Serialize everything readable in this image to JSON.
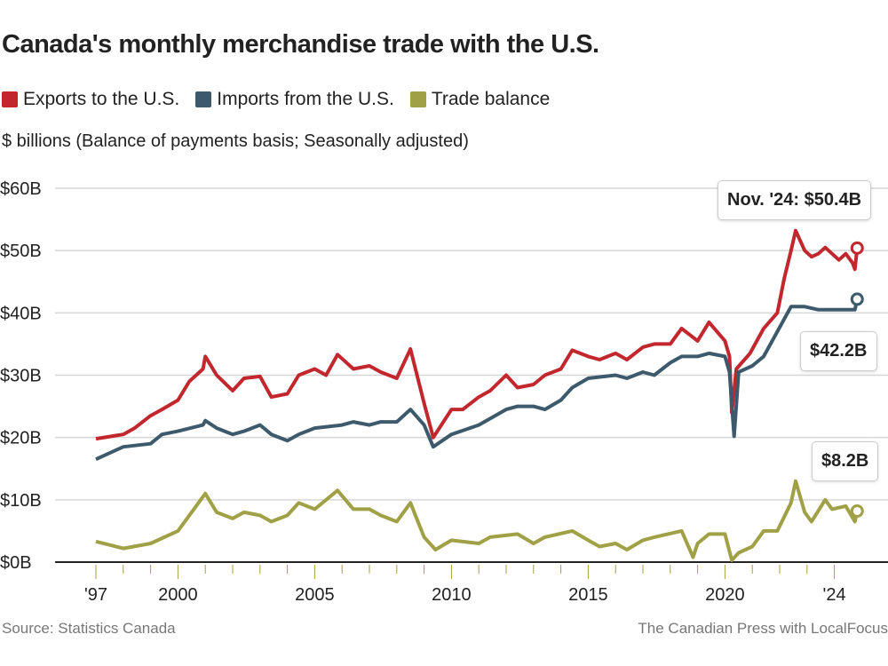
{
  "chart_data": {
    "type": "line",
    "title": "Canada's monthly merchandise trade with the U.S.",
    "subtitle": "$ billions (Balance of payments basis; Seasonally adjusted)",
    "ylim": [
      0,
      60
    ],
    "y_ticks": [
      "$0B",
      "$10B",
      "$20B",
      "$30B",
      "$40B",
      "$50B",
      "$60B"
    ],
    "x_ticks": [
      {
        "year": 1997,
        "label": "'97"
      },
      {
        "year": 2000,
        "label": "2000"
      },
      {
        "year": 2005,
        "label": "2005"
      },
      {
        "year": 2010,
        "label": "2010"
      },
      {
        "year": 2015,
        "label": "2015"
      },
      {
        "year": 2020,
        "label": "2020"
      },
      {
        "year": 2024,
        "label": "'24"
      }
    ],
    "grid": true,
    "legend_position": "top-left",
    "series": [
      {
        "name": "Exports to the U.S.",
        "color": "#c1272d",
        "points": [
          [
            "1997-01",
            19.8
          ],
          [
            "1998-01",
            20.5
          ],
          [
            "1998-06",
            21.5
          ],
          [
            "1999-01",
            23.5
          ],
          [
            "1999-06",
            24.5
          ],
          [
            "2000-01",
            26
          ],
          [
            "2000-06",
            29
          ],
          [
            "2000-12",
            31
          ],
          [
            "2001-01",
            33
          ],
          [
            "2001-06",
            30
          ],
          [
            "2002-01",
            27.5
          ],
          [
            "2002-06",
            29.5
          ],
          [
            "2003-01",
            29.8
          ],
          [
            "2003-06",
            26.5
          ],
          [
            "2004-01",
            27
          ],
          [
            "2004-06",
            30
          ],
          [
            "2005-01",
            31
          ],
          [
            "2005-06",
            30
          ],
          [
            "2005-11",
            33.3
          ],
          [
            "2006-06",
            31
          ],
          [
            "2007-01",
            31.5
          ],
          [
            "2007-06",
            30.5
          ],
          [
            "2008-01",
            29.5
          ],
          [
            "2008-07",
            34.2
          ],
          [
            "2009-01",
            25.5
          ],
          [
            "2009-05",
            20
          ],
          [
            "2010-01",
            24.5
          ],
          [
            "2010-06",
            24.5
          ],
          [
            "2011-01",
            26.5
          ],
          [
            "2011-06",
            27.5
          ],
          [
            "2012-01",
            30
          ],
          [
            "2012-06",
            28
          ],
          [
            "2013-01",
            28.5
          ],
          [
            "2013-06",
            30
          ],
          [
            "2014-01",
            31
          ],
          [
            "2014-06",
            34
          ],
          [
            "2015-01",
            33
          ],
          [
            "2015-06",
            32.5
          ],
          [
            "2016-01",
            33.5
          ],
          [
            "2016-06",
            32.5
          ],
          [
            "2017-01",
            34.5
          ],
          [
            "2017-06",
            35
          ],
          [
            "2018-01",
            35
          ],
          [
            "2018-06",
            37.5
          ],
          [
            "2019-01",
            35.5
          ],
          [
            "2019-06",
            38.5
          ],
          [
            "2020-01",
            35.5
          ],
          [
            "2020-03",
            33
          ],
          [
            "2020-04",
            24
          ],
          [
            "2020-06",
            31
          ],
          [
            "2020-12",
            33.5
          ],
          [
            "2021-06",
            37.5
          ],
          [
            "2021-12",
            40
          ],
          [
            "2022-03",
            45.5
          ],
          [
            "2022-06",
            50
          ],
          [
            "2022-08",
            53.2
          ],
          [
            "2022-12",
            50
          ],
          [
            "2023-03",
            49
          ],
          [
            "2023-06",
            49.5
          ],
          [
            "2023-09",
            50.5
          ],
          [
            "2023-12",
            49.5
          ],
          [
            "2024-03",
            48.5
          ],
          [
            "2024-06",
            49.5
          ],
          [
            "2024-09",
            48
          ],
          [
            "2024-10",
            47
          ],
          [
            "2024-11",
            50.4
          ]
        ]
      },
      {
        "name": "Imports from the U.S.",
        "color": "#3d5a6c",
        "points": [
          [
            "1997-01",
            16.5
          ],
          [
            "1998-01",
            18.5
          ],
          [
            "1999-01",
            19
          ],
          [
            "1999-06",
            20.5
          ],
          [
            "2000-01",
            21
          ],
          [
            "2000-12",
            22
          ],
          [
            "2001-01",
            22.7
          ],
          [
            "2001-06",
            21.5
          ],
          [
            "2002-01",
            20.5
          ],
          [
            "2002-06",
            21
          ],
          [
            "2003-01",
            22
          ],
          [
            "2003-06",
            20.5
          ],
          [
            "2004-01",
            19.5
          ],
          [
            "2004-06",
            20.5
          ],
          [
            "2005-01",
            21.5
          ],
          [
            "2006-01",
            22
          ],
          [
            "2006-06",
            22.5
          ],
          [
            "2007-01",
            22
          ],
          [
            "2007-06",
            22.5
          ],
          [
            "2008-01",
            22.5
          ],
          [
            "2008-07",
            24.5
          ],
          [
            "2009-01",
            22
          ],
          [
            "2009-05",
            18.5
          ],
          [
            "2010-01",
            20.5
          ],
          [
            "2011-01",
            22
          ],
          [
            "2012-01",
            24.5
          ],
          [
            "2012-06",
            25
          ],
          [
            "2013-01",
            25
          ],
          [
            "2013-06",
            24.5
          ],
          [
            "2014-01",
            26
          ],
          [
            "2014-06",
            28
          ],
          [
            "2015-01",
            29.5
          ],
          [
            "2016-01",
            30
          ],
          [
            "2016-06",
            29.5
          ],
          [
            "2017-01",
            30.5
          ],
          [
            "2017-06",
            30
          ],
          [
            "2018-01",
            32
          ],
          [
            "2018-06",
            33
          ],
          [
            "2019-01",
            33
          ],
          [
            "2019-06",
            33.5
          ],
          [
            "2020-01",
            33
          ],
          [
            "2020-03",
            30.5
          ],
          [
            "2020-05",
            20.2
          ],
          [
            "2020-07",
            30.5
          ],
          [
            "2021-01",
            31.5
          ],
          [
            "2021-06",
            33
          ],
          [
            "2021-12",
            37
          ],
          [
            "2022-06",
            41
          ],
          [
            "2022-12",
            41
          ],
          [
            "2023-06",
            40.5
          ],
          [
            "2023-12",
            40.5
          ],
          [
            "2024-06",
            40.5
          ],
          [
            "2024-10",
            40.5
          ],
          [
            "2024-11",
            42.2
          ]
        ]
      },
      {
        "name": "Trade balance",
        "color": "#a0a046",
        "points": [
          [
            "1997-01",
            3.3
          ],
          [
            "1998-01",
            2.2
          ],
          [
            "1999-01",
            3
          ],
          [
            "2000-01",
            5
          ],
          [
            "2000-06",
            7.5
          ],
          [
            "2001-01",
            11
          ],
          [
            "2001-06",
            8
          ],
          [
            "2002-01",
            7
          ],
          [
            "2002-06",
            8
          ],
          [
            "2003-01",
            7.5
          ],
          [
            "2003-06",
            6.5
          ],
          [
            "2004-01",
            7.5
          ],
          [
            "2004-06",
            9.5
          ],
          [
            "2005-01",
            8.5
          ],
          [
            "2005-11",
            11.5
          ],
          [
            "2006-06",
            8.5
          ],
          [
            "2007-01",
            8.5
          ],
          [
            "2007-06",
            7.5
          ],
          [
            "2008-01",
            6.5
          ],
          [
            "2008-07",
            9.5
          ],
          [
            "2009-01",
            4
          ],
          [
            "2009-06",
            2
          ],
          [
            "2010-01",
            3.5
          ],
          [
            "2011-01",
            3
          ],
          [
            "2011-06",
            4
          ],
          [
            "2012-06",
            4.5
          ],
          [
            "2013-01",
            3
          ],
          [
            "2013-06",
            4
          ],
          [
            "2014-06",
            5
          ],
          [
            "2015-01",
            3.5
          ],
          [
            "2015-06",
            2.5
          ],
          [
            "2016-01",
            3
          ],
          [
            "2016-06",
            2
          ],
          [
            "2017-01",
            3.5
          ],
          [
            "2017-06",
            4
          ],
          [
            "2018-06",
            5
          ],
          [
            "2018-11",
            0.8
          ],
          [
            "2019-01",
            3
          ],
          [
            "2019-06",
            4.5
          ],
          [
            "2020-01",
            4.5
          ],
          [
            "2020-04",
            0.3
          ],
          [
            "2020-07",
            1.5
          ],
          [
            "2021-01",
            2.5
          ],
          [
            "2021-06",
            5
          ],
          [
            "2021-12",
            5
          ],
          [
            "2022-06",
            9.5
          ],
          [
            "2022-08",
            13
          ],
          [
            "2022-12",
            8
          ],
          [
            "2023-03",
            6.5
          ],
          [
            "2023-09",
            10
          ],
          [
            "2023-12",
            8.5
          ],
          [
            "2024-06",
            9
          ],
          [
            "2024-10",
            6.5
          ],
          [
            "2024-11",
            8.2
          ]
        ]
      }
    ],
    "annotations": [
      "Nov. '24: $50.4B",
      "$42.2B",
      "$8.2B"
    ]
  },
  "source": "Source:  Statistics Canada",
  "credit": "The Canadian Press with LocalFocus"
}
